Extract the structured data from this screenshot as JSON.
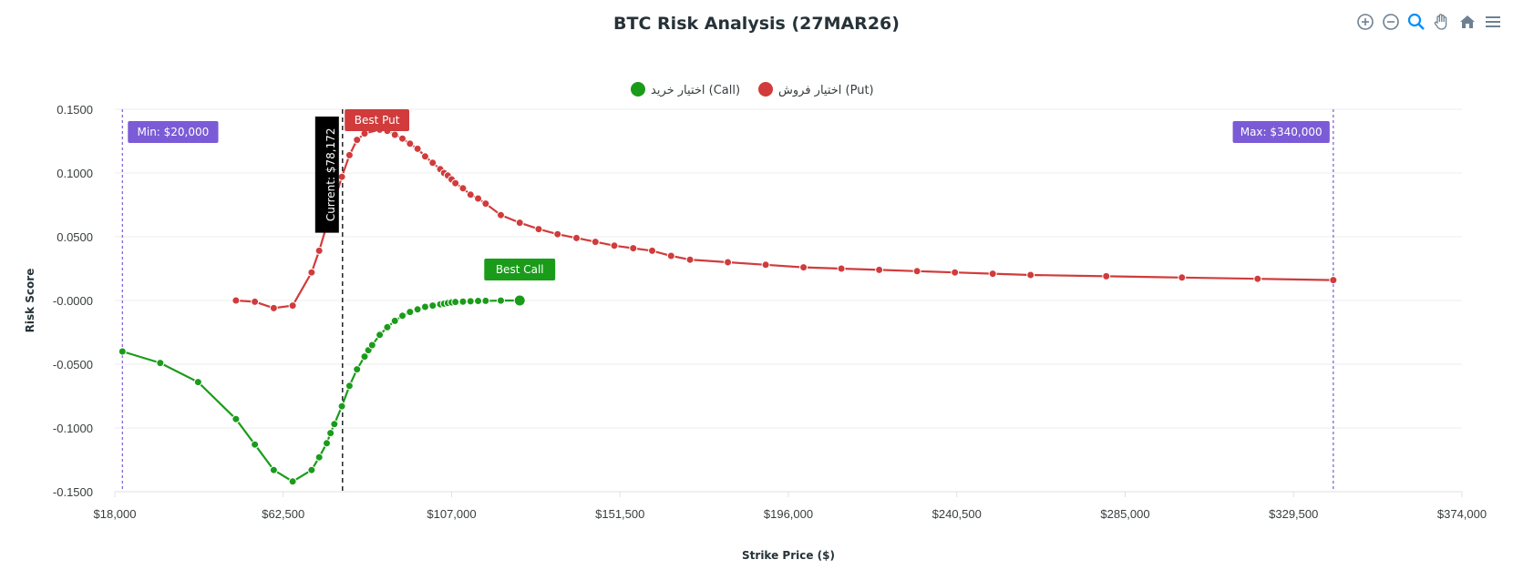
{
  "chart_data": {
    "type": "line",
    "title": "BTC Risk Analysis (27MAR26)",
    "xlabel": "Strike Price ($)",
    "ylabel": "Risk Score",
    "xlim": [
      18000,
      374000
    ],
    "ylim": [
      -0.15,
      0.15
    ],
    "x_ticks": [
      18000,
      62500,
      107000,
      151500,
      196000,
      240500,
      285000,
      329500,
      374000
    ],
    "x_tick_labels": [
      "$18,000",
      "$62,500",
      "$107,000",
      "$151,500",
      "$196,000",
      "$240,500",
      "$285,000",
      "$329,500",
      "$374,000"
    ],
    "y_ticks": [
      0.15,
      0.1,
      0.05,
      0,
      -0.05,
      -0.1,
      -0.15
    ],
    "y_tick_labels": [
      "0.1500",
      "0.1000",
      "0.0500",
      "-0.0000",
      "-0.0500",
      "-0.1000",
      "-0.1500"
    ],
    "grid": true,
    "legend_position": "top-center",
    "series": [
      {
        "name": "اختیار خرید (Call)",
        "color": "#1a9c1a",
        "x": [
          20000,
          30000,
          40000,
          50000,
          55000,
          60000,
          65000,
          70000,
          72000,
          74000,
          75000,
          76000,
          78000,
          80000,
          82000,
          84000,
          85000,
          86000,
          88000,
          90000,
          92000,
          94000,
          96000,
          98000,
          100000,
          102000,
          104000,
          105000,
          106000,
          107000,
          108000,
          110000,
          112000,
          114000,
          116000,
          120000,
          125000
        ],
        "y": [
          -0.04,
          -0.049,
          -0.064,
          -0.093,
          -0.113,
          -0.133,
          -0.142,
          -0.133,
          -0.123,
          -0.112,
          -0.104,
          -0.097,
          -0.083,
          -0.067,
          -0.054,
          -0.044,
          -0.039,
          -0.035,
          -0.027,
          -0.021,
          -0.016,
          -0.012,
          -0.009,
          -0.007,
          -0.005,
          -0.004,
          -0.003,
          -0.0025,
          -0.002,
          -0.0015,
          -0.0012,
          -0.0009,
          -0.0006,
          -0.0004,
          -0.0003,
          -0.0001,
          0.0
        ]
      },
      {
        "name": "اختیار فروش (Put)",
        "color": "#d13b3b",
        "x": [
          50000,
          55000,
          60000,
          65000,
          70000,
          72000,
          74000,
          78000,
          80000,
          82000,
          84000,
          88000,
          90000,
          92000,
          94000,
          96000,
          98000,
          100000,
          102000,
          104000,
          105000,
          106000,
          107000,
          108000,
          110000,
          112000,
          114000,
          116000,
          120000,
          125000,
          130000,
          135000,
          140000,
          145000,
          150000,
          155000,
          160000,
          165000,
          170000,
          180000,
          190000,
          200000,
          210000,
          220000,
          230000,
          240000,
          250000,
          260000,
          280000,
          300000,
          320000,
          340000
        ],
        "y": [
          0.0,
          -0.001,
          -0.006,
          -0.004,
          0.022,
          0.039,
          0.059,
          0.097,
          0.114,
          0.126,
          0.131,
          0.134,
          0.133,
          0.13,
          0.127,
          0.123,
          0.119,
          0.113,
          0.108,
          0.103,
          0.1,
          0.098,
          0.095,
          0.092,
          0.088,
          0.083,
          0.08,
          0.076,
          0.067,
          0.061,
          0.056,
          0.052,
          0.049,
          0.046,
          0.043,
          0.041,
          0.039,
          0.035,
          0.032,
          0.03,
          0.028,
          0.026,
          0.025,
          0.024,
          0.023,
          0.022,
          0.021,
          0.02,
          0.019,
          0.018,
          0.017,
          0.016
        ]
      }
    ],
    "annotations": {
      "current": {
        "x": 78172,
        "label": "Current: $78,172",
        "color": "#000000"
      },
      "min": {
        "x": 20000,
        "label": "Min: $20,000",
        "color": "#7b5bd6"
      },
      "max": {
        "x": 340000,
        "label": "Max: $340,000",
        "color": "#7b5bd6"
      },
      "best_put": {
        "x": 88000,
        "y": 0.134,
        "label": "Best Put",
        "color": "#d13b3b"
      },
      "best_call": {
        "x": 125000,
        "y": 0.0,
        "label": "Best Call",
        "color": "#1a9c1a"
      }
    }
  },
  "toolbar": {
    "icons": [
      "zoom-in-icon",
      "zoom-out-icon",
      "zoom-icon",
      "pan-icon",
      "home-icon",
      "menu-icon"
    ]
  }
}
